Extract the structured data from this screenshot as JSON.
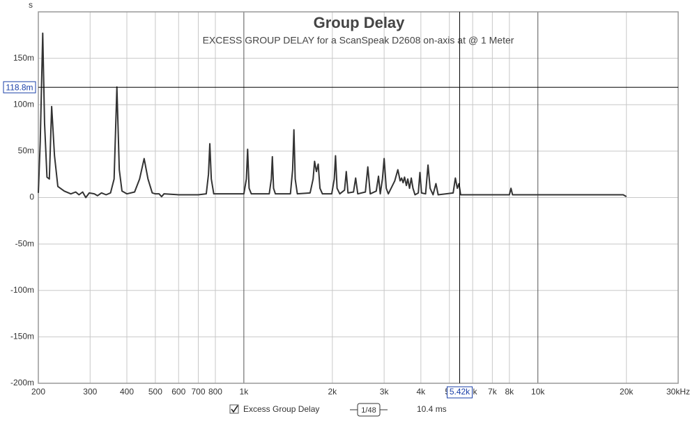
{
  "chart_data": {
    "type": "line",
    "title": "Group Delay",
    "subtitle": "EXCESS GROUP DELAY  for a ScanSpeak D2608 on-axis at @ 1 Meter",
    "y_label": "s",
    "x": [
      200,
      203,
      207,
      210,
      214,
      218,
      222,
      227,
      233,
      245,
      258,
      268,
      275,
      283,
      290,
      298,
      310,
      318,
      328,
      340,
      352,
      362,
      370,
      377,
      385,
      400,
      425,
      442,
      458,
      472,
      488,
      500,
      515,
      525,
      535,
      600,
      700,
      745,
      758,
      766,
      775,
      790,
      1000,
      1020,
      1030,
      1042,
      1060,
      1220,
      1240,
      1250,
      1262,
      1280,
      1440,
      1465,
      1480,
      1495,
      1520,
      1680,
      1720,
      1740,
      1765,
      1790,
      1815,
      1850,
      1990,
      2030,
      2050,
      2075,
      2120,
      2200,
      2230,
      2260,
      2360,
      2400,
      2440,
      2590,
      2640,
      2690,
      2820,
      2870,
      2910,
      2960,
      3000,
      3050,
      3100,
      3260,
      3340,
      3400,
      3440,
      3480,
      3520,
      3570,
      3610,
      3660,
      3710,
      3760,
      3820,
      3920,
      3970,
      4020,
      4150,
      4230,
      4300,
      4400,
      4500,
      4580,
      5150,
      5240,
      5320,
      5390,
      5460,
      8000,
      8100,
      8200,
      19500,
      20000
    ],
    "series": [
      {
        "name": "Excess Group Delay",
        "color": "#333333",
        "values": [
          0.005,
          0.06,
          0.177,
          0.08,
          0.022,
          0.02,
          0.098,
          0.045,
          0.012,
          0.007,
          0.004,
          0.006,
          0.003,
          0.006,
          0.0,
          0.005,
          0.004,
          0.002,
          0.005,
          0.003,
          0.005,
          0.02,
          0.119,
          0.03,
          0.007,
          0.004,
          0.006,
          0.02,
          0.042,
          0.02,
          0.005,
          0.004,
          0.004,
          0.001,
          0.004,
          0.003,
          0.003,
          0.004,
          0.025,
          0.058,
          0.02,
          0.004,
          0.004,
          0.02,
          0.052,
          0.01,
          0.004,
          0.004,
          0.02,
          0.044,
          0.01,
          0.004,
          0.004,
          0.03,
          0.073,
          0.02,
          0.004,
          0.005,
          0.02,
          0.039,
          0.028,
          0.036,
          0.01,
          0.004,
          0.004,
          0.02,
          0.045,
          0.01,
          0.004,
          0.008,
          0.028,
          0.005,
          0.006,
          0.021,
          0.004,
          0.006,
          0.033,
          0.004,
          0.007,
          0.023,
          0.004,
          0.02,
          0.042,
          0.01,
          0.004,
          0.018,
          0.03,
          0.018,
          0.021,
          0.016,
          0.022,
          0.013,
          0.02,
          0.01,
          0.021,
          0.01,
          0.003,
          0.005,
          0.027,
          0.005,
          0.004,
          0.035,
          0.01,
          0.003,
          0.015,
          0.003,
          0.005,
          0.021,
          0.01,
          0.015,
          0.003,
          0.003,
          0.01,
          0.003,
          0.003,
          0.001
        ]
      }
    ],
    "xlim": [
      200,
      30000
    ],
    "log_x": true,
    "xticks": [
      200,
      300,
      400,
      500,
      600,
      700,
      800,
      {
        "value": 1000,
        "label": "1k"
      },
      {
        "value": 2000,
        "label": "2k"
      },
      {
        "value": 3000,
        "label": "3k"
      },
      {
        "value": 4000,
        "label": "4k"
      },
      {
        "value": 5000,
        "label": "5k"
      },
      {
        "value": 6000,
        "label": "6k"
      },
      {
        "value": 7000,
        "label": "7k"
      },
      {
        "value": 8000,
        "label": "8k"
      },
      {
        "value": 10000,
        "label": "10k"
      },
      {
        "value": 20000,
        "label": "20k"
      },
      {
        "value": 30000,
        "label": "30kHz"
      }
    ],
    "ylim": [
      -0.2,
      0.2
    ],
    "yticks": [
      {
        "value": -0.2,
        "label": "-200m"
      },
      {
        "value": -0.15,
        "label": "-150m"
      },
      {
        "value": -0.1,
        "label": "-100m"
      },
      {
        "value": -0.05,
        "label": "-50m"
      },
      0,
      {
        "value": 0.05,
        "label": "50m"
      },
      {
        "value": 0.1,
        "label": "100m"
      },
      {
        "value": 0.15,
        "label": "150m"
      }
    ],
    "grid": true,
    "cursor": {
      "x": 5420,
      "x_label": "5.42k",
      "y": 0.1188,
      "y_label": "118.8m"
    }
  },
  "controls": {
    "smoothing": "1/48",
    "readout": "10.4 ms"
  }
}
